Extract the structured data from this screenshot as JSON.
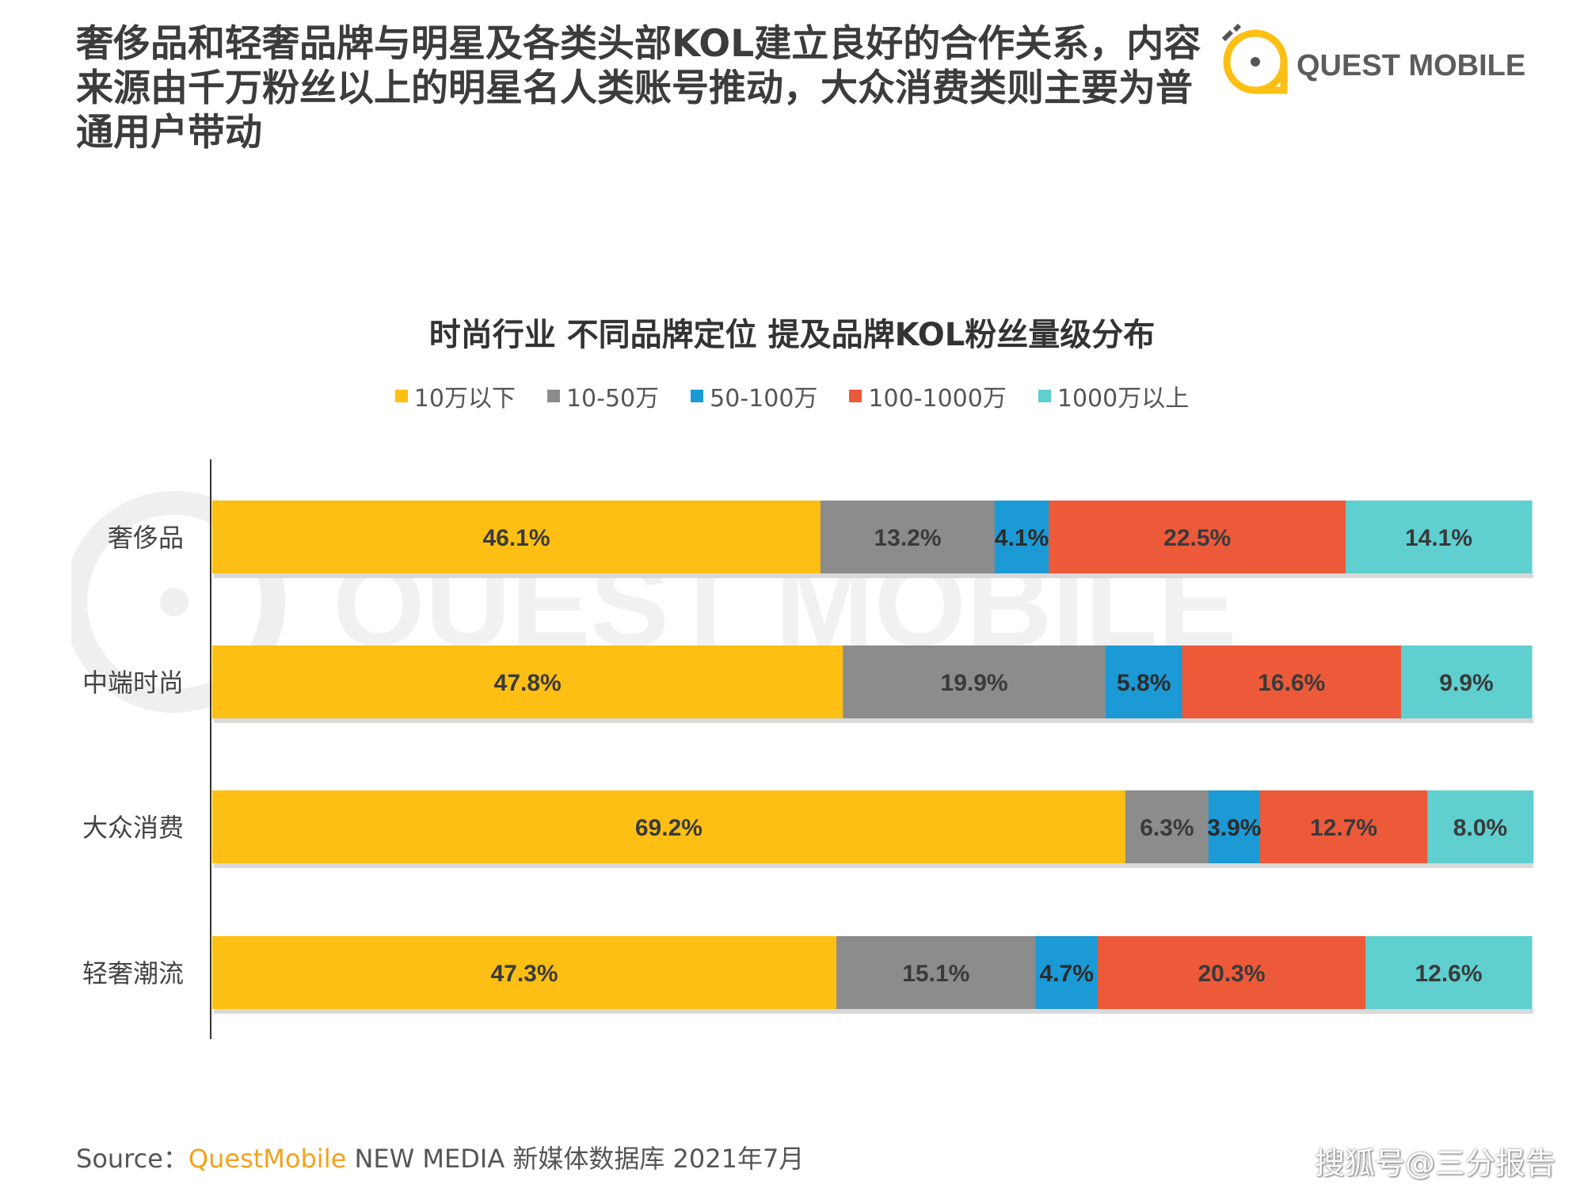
{
  "headline": "奢侈品和轻奢品牌与明星及各类头部KOL建立良好的合作关系，内容来源由千万粉丝以上的明星名人类账号推动，大众消费类则主要为普通用户带动",
  "logo": {
    "text": "QUEST MOBILE",
    "icon": "quest-mobile-logo-icon",
    "watermark": "QUEST MOBILE"
  },
  "colors": {
    "s1": "#fdbf13",
    "s2": "#8c8c8c",
    "s3": "#1b9ad6",
    "s4": "#ec5a3a",
    "s5": "#5fcfd0"
  },
  "chart_data": {
    "type": "bar",
    "orientation": "horizontal",
    "stacked": true,
    "title": "时尚行业 不同品牌定位 提及品牌KOL粉丝量级分布",
    "legend_position": "top",
    "xlim": [
      0,
      100
    ],
    "categories": [
      "奢侈品",
      "中端时尚",
      "大众消费",
      "轻奢潮流"
    ],
    "series": [
      {
        "name": "10万以下",
        "values": [
          46.1,
          47.8,
          69.2,
          47.3
        ],
        "labels": [
          "46.1%",
          "47.8%",
          "69.2%",
          "47.3%"
        ]
      },
      {
        "name": "10-50万",
        "values": [
          13.2,
          19.9,
          6.3,
          15.1
        ],
        "labels": [
          "13.2%",
          "19.9%",
          "6.3%",
          "15.1%"
        ]
      },
      {
        "name": "50-100万",
        "values": [
          4.1,
          5.8,
          3.9,
          4.7
        ],
        "labels": [
          "4.1%",
          "5.8%",
          "3.9%",
          "4.7%"
        ]
      },
      {
        "name": "100-1000万",
        "values": [
          22.5,
          16.6,
          12.7,
          20.3
        ],
        "labels": [
          "22.5%",
          "16.6%",
          "12.7%",
          "20.3%"
        ]
      },
      {
        "name": "1000万以上",
        "values": [
          14.1,
          9.9,
          8.0,
          12.6
        ],
        "labels": [
          "14.1%",
          "9.9%",
          "8.0%",
          "12.6%"
        ]
      }
    ]
  },
  "source": {
    "prefix": "Source：",
    "brand": "QuestMobile",
    "rest": " NEW MEDIA 新媒体数据库 2021年7月"
  },
  "sohu_watermark": "搜狐号@三分报告"
}
